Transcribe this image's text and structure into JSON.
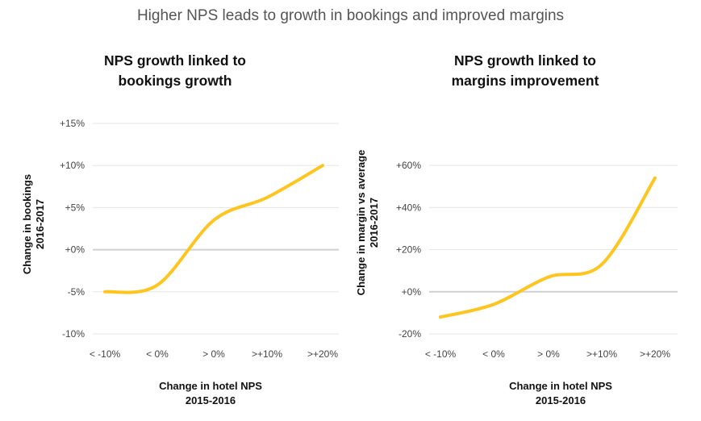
{
  "title": "Higher NPS leads to growth in bookings and improved margins",
  "chart_data": [
    {
      "type": "line",
      "title": [
        "NPS growth linked to",
        "bookings growth"
      ],
      "xlabel": [
        "Change in hotel NPS",
        "2015-2016"
      ],
      "ylabel": [
        "Change in bookings",
        "2016-2017"
      ],
      "categories": [
        "< -10%",
        "< 0%",
        "> 0%",
        ">+10%",
        ">+20%"
      ],
      "series": [
        {
          "values": [
            -5,
            -4.2,
            3.5,
            6.2,
            10
          ]
        }
      ],
      "yticks": [
        -10,
        -5,
        0,
        5,
        10,
        15
      ],
      "ytick_labels": [
        "-10%",
        "-5%",
        "+0%",
        "+5%",
        "+10%",
        "+15%"
      ],
      "ylim": [
        -10,
        15
      ],
      "grid": true,
      "color": "#FFC51F"
    },
    {
      "type": "line",
      "title": [
        "NPS growth linked to",
        "margins improvement"
      ],
      "xlabel": [
        "Change in hotel NPS",
        "2015-2016"
      ],
      "ylabel": [
        "Change in margin vs average",
        "2016-2017"
      ],
      "categories": [
        "< -10%",
        "< 0%",
        "> 0%",
        ">+10%",
        ">+20%"
      ],
      "series": [
        {
          "values": [
            -12,
            -6,
            7,
            13,
            54
          ]
        }
      ],
      "yticks": [
        -20,
        0,
        20,
        40,
        60
      ],
      "ytick_labels": [
        "-20%",
        "+0%",
        "+20%",
        "+40%",
        "+60%"
      ],
      "ylim": [
        -20,
        60
      ],
      "grid": true,
      "color": "#FFC51F"
    }
  ]
}
